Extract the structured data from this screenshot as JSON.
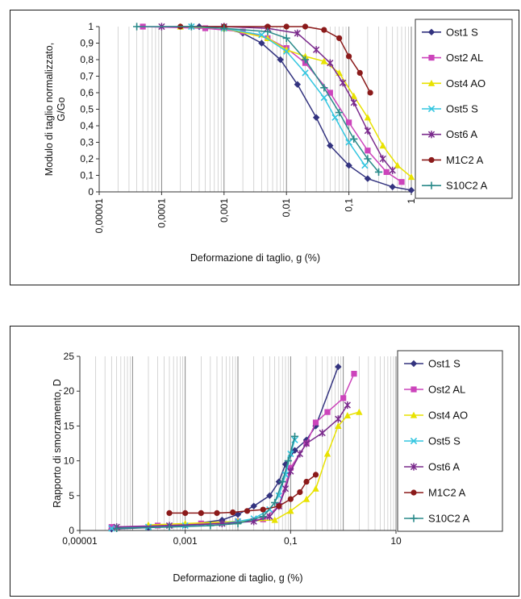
{
  "chart_data": [
    {
      "type": "scatter",
      "x_scale": "log",
      "xlabel": "Deformazione di taglio, g  (%)",
      "ylabel": "Modulo di taglio normalizzato, G/Go",
      "xlim": [
        1e-05,
        1
      ],
      "ylim": [
        0,
        1
      ],
      "x_tick_labels": [
        "0,00001",
        "0,0001",
        "0,001",
        "0,01",
        "0,1",
        "1"
      ],
      "y_tick_labels": [
        "0",
        "0,1",
        "0,2",
        "0,3",
        "0,4",
        "0,5",
        "0,6",
        "0,7",
        "0,8",
        "0,9",
        "1"
      ],
      "grid": true,
      "legend_position": "right",
      "series": [
        {
          "name": "Ost1 S",
          "color": "#33337f",
          "marker": "diamond",
          "x": [
            0.0004,
            0.001,
            0.002,
            0.004,
            0.008,
            0.015,
            0.03,
            0.05,
            0.1,
            0.2,
            0.5,
            1.0
          ],
          "y": [
            1.0,
            0.99,
            0.96,
            0.9,
            0.8,
            0.65,
            0.45,
            0.28,
            0.16,
            0.08,
            0.03,
            0.01
          ]
        },
        {
          "name": "Ost2 AL",
          "color": "#cc44bb",
          "marker": "square",
          "x": [
            5e-05,
            0.0005,
            0.002,
            0.005,
            0.01,
            0.02,
            0.05,
            0.1,
            0.2,
            0.4,
            0.7
          ],
          "y": [
            1.0,
            0.99,
            0.97,
            0.93,
            0.87,
            0.78,
            0.6,
            0.42,
            0.25,
            0.12,
            0.06
          ]
        },
        {
          "name": "Ost4 AO",
          "color": "#e8e200",
          "marker": "triangle",
          "x": [
            0.0002,
            0.001,
            0.005,
            0.01,
            0.02,
            0.04,
            0.07,
            0.12,
            0.2,
            0.35,
            0.6,
            1.0
          ],
          "y": [
            1.0,
            0.99,
            0.93,
            0.86,
            0.82,
            0.79,
            0.72,
            0.58,
            0.45,
            0.28,
            0.16,
            0.09
          ]
        },
        {
          "name": "Ost5 S",
          "color": "#33c6e0",
          "marker": "cross",
          "x": [
            0.0003,
            0.001,
            0.004,
            0.01,
            0.02,
            0.04,
            0.06,
            0.1,
            0.18
          ],
          "y": [
            1.0,
            0.99,
            0.95,
            0.85,
            0.72,
            0.57,
            0.45,
            0.3,
            0.16
          ]
        },
        {
          "name": "Ost6 A",
          "color": "#7a2a8c",
          "marker": "star",
          "x": [
            0.0001,
            0.001,
            0.005,
            0.015,
            0.03,
            0.05,
            0.08,
            0.12,
            0.2,
            0.35,
            0.5
          ],
          "y": [
            1.0,
            1.0,
            0.99,
            0.96,
            0.86,
            0.78,
            0.66,
            0.54,
            0.37,
            0.2,
            0.13
          ]
        },
        {
          "name": "M1C2 A",
          "color": "#8b1a1a",
          "marker": "circle",
          "x": [
            0.0002,
            0.001,
            0.005,
            0.01,
            0.02,
            0.04,
            0.07,
            0.1,
            0.15,
            0.22
          ],
          "y": [
            1.0,
            1.0,
            1.0,
            1.0,
            1.0,
            0.98,
            0.93,
            0.82,
            0.72,
            0.6
          ]
        },
        {
          "name": "S10C2 A",
          "color": "#2a8a8a",
          "marker": "plus",
          "x": [
            4e-05,
            0.0003,
            0.001,
            0.005,
            0.01,
            0.02,
            0.04,
            0.07,
            0.12,
            0.2,
            0.3
          ],
          "y": [
            1.0,
            1.0,
            0.99,
            0.97,
            0.93,
            0.8,
            0.63,
            0.48,
            0.32,
            0.2,
            0.12
          ]
        }
      ]
    },
    {
      "type": "scatter",
      "x_scale": "log",
      "xlabel": "Deformazione di taglio, g  (%)",
      "ylabel": "Rapporto di smorzamento, D",
      "xlim": [
        1e-05,
        10
      ],
      "ylim": [
        0,
        25
      ],
      "x_tick_labels": [
        "0,00001",
        "0,001",
        "0,1",
        "10"
      ],
      "y_tick_labels": [
        "0",
        "5",
        "10",
        "15",
        "20",
        "25"
      ],
      "grid": true,
      "legend_position": "right",
      "series": [
        {
          "name": "Ost1 S",
          "color": "#33337f",
          "marker": "diamond",
          "x": [
            4e-05,
            0.0002,
            0.001,
            0.005,
            0.01,
            0.02,
            0.04,
            0.06,
            0.08,
            0.12,
            0.2,
            0.3,
            0.8
          ],
          "y": [
            0.2,
            0.4,
            0.8,
            1.5,
            2.3,
            3.5,
            5.0,
            7.0,
            9.5,
            11.5,
            13.0,
            15.0,
            23.5
          ]
        },
        {
          "name": "Ost2 AL",
          "color": "#cc44bb",
          "marker": "square",
          "x": [
            4e-05,
            0.0003,
            0.002,
            0.01,
            0.03,
            0.06,
            0.1,
            0.2,
            0.3,
            0.5,
            1.0,
            1.6
          ],
          "y": [
            0.5,
            0.7,
            1.0,
            1.3,
            1.6,
            3.5,
            9.0,
            12.5,
            15.5,
            17.0,
            19.0,
            22.5
          ]
        },
        {
          "name": "Ost4 AO",
          "color": "#e8e200",
          "marker": "triangle",
          "x": [
            0.0002,
            0.001,
            0.01,
            0.05,
            0.1,
            0.2,
            0.3,
            0.5,
            0.8,
            1.2,
            2.0
          ],
          "y": [
            0.8,
            1.0,
            1.3,
            1.5,
            2.8,
            4.5,
            6.0,
            11.0,
            15.0,
            16.5,
            17.0
          ]
        },
        {
          "name": "Ost5 S",
          "color": "#33c6e0",
          "marker": "cross",
          "x": [
            4e-05,
            0.0002,
            0.001,
            0.005,
            0.01,
            0.02,
            0.04,
            0.06,
            0.08,
            0.1,
            0.12
          ],
          "y": [
            0.3,
            0.5,
            0.7,
            1.0,
            1.3,
            1.7,
            3.0,
            5.0,
            8.0,
            11.0,
            13.0
          ]
        },
        {
          "name": "Ost6 A",
          "color": "#7a2a8c",
          "marker": "star",
          "x": [
            5e-05,
            0.0005,
            0.005,
            0.02,
            0.04,
            0.06,
            0.08,
            0.1,
            0.15,
            0.2,
            0.4,
            0.8,
            1.2
          ],
          "y": [
            0.5,
            0.7,
            1.0,
            1.3,
            2.0,
            3.5,
            6.0,
            8.5,
            11.0,
            12.5,
            14.0,
            16.0,
            18.0
          ]
        },
        {
          "name": "M1C2 A",
          "color": "#8b1a1a",
          "marker": "circle",
          "x": [
            0.0005,
            0.001,
            0.002,
            0.004,
            0.008,
            0.015,
            0.03,
            0.06,
            0.1,
            0.15,
            0.2,
            0.3
          ],
          "y": [
            2.5,
            2.5,
            2.5,
            2.5,
            2.6,
            2.8,
            3.0,
            3.5,
            4.5,
            5.5,
            7.0,
            8.0
          ]
        },
        {
          "name": "S10C2 A",
          "color": "#2a8a8a",
          "marker": "plus",
          "x": [
            5e-05,
            0.0005,
            0.003,
            0.01,
            0.03,
            0.05,
            0.07,
            0.09,
            0.12
          ],
          "y": [
            0.3,
            0.5,
            0.7,
            1.0,
            2.0,
            4.0,
            7.0,
            10.0,
            13.5
          ]
        }
      ]
    }
  ]
}
